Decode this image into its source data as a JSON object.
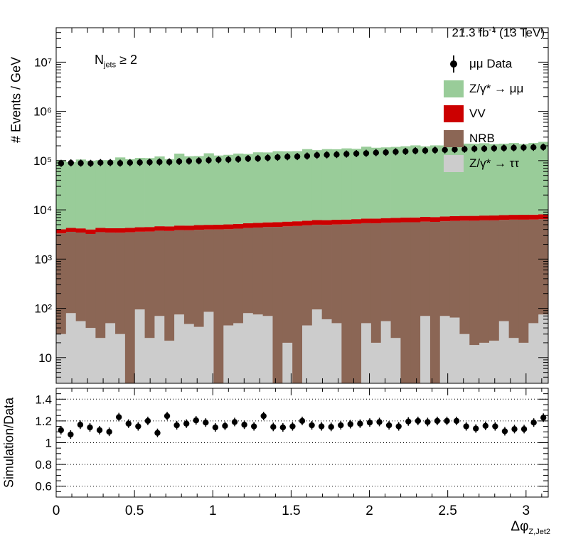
{
  "header": {
    "lumi": "21.3 fb",
    "lumi_sup": "-1",
    "lumi_tail": " (13 TeV)",
    "selection_main": "N",
    "selection_sub": "jets",
    "selection_tail": " ≥ 2"
  },
  "axes": {
    "top_ylabel": "# Events / GeV",
    "bottom_ylabel": "Simulation/Data",
    "xlabel_main": "Δφ",
    "xlabel_sub": "Z,Jet2"
  },
  "legend": [
    {
      "label": "μμ Data",
      "kind": "marker",
      "color": "#000000"
    },
    {
      "label": "Z/γ* → μμ",
      "kind": "fill",
      "color": "#99cc99"
    },
    {
      "label": "VV",
      "kind": "fill",
      "color": "#cc0000"
    },
    {
      "label": "NRB",
      "kind": "fill",
      "color": "#8b6655"
    },
    {
      "label": "Z/γ* → ττ",
      "kind": "fill",
      "color": "#cccccc"
    }
  ],
  "chart_data": {
    "type": "bar",
    "stacked": true,
    "xlim": [
      0,
      3.1416
    ],
    "ylim_top": [
      3,
      50000000
    ],
    "yscale_top": "log",
    "ylim_bottom": [
      0.5,
      1.5
    ],
    "xticks": [
      0,
      0.5,
      1,
      1.5,
      2,
      2.5,
      3
    ],
    "xtick_labels": [
      "0",
      "0.5",
      "1",
      "1.5",
      "2",
      "2.5",
      "3"
    ],
    "yticks_top": [
      10,
      100,
      1000,
      10000,
      100000,
      1000000,
      10000000
    ],
    "ytick_labels_top": [
      "10",
      "10²",
      "10³",
      "10⁴",
      "10⁵",
      "10⁶",
      "10⁷"
    ],
    "yticks_bottom": [
      0.6,
      0.8,
      1,
      1.2,
      1.4
    ],
    "ytick_labels_bottom": [
      "0.6",
      "0.8",
      "1",
      "1.2",
      "1.4"
    ],
    "n_bins": 50,
    "colors": {
      "zmm": "#99cc99",
      "vv": "#cc0000",
      "nrb": "#8b6655",
      "ztt": "#cccccc",
      "data": "#000000"
    },
    "series": [
      {
        "name": "Z/γ* → ττ",
        "key": "ztt",
        "values": [
          30,
          80,
          55,
          40,
          25,
          50,
          30,
          0,
          95,
          25,
          70,
          22,
          75,
          48,
          42,
          85,
          0,
          45,
          50,
          80,
          75,
          70,
          0,
          20,
          0,
          45,
          95,
          60,
          50,
          0,
          0,
          50,
          20,
          55,
          25,
          0,
          0,
          70,
          0,
          70,
          65,
          30,
          18,
          20,
          22,
          55,
          25,
          20,
          50,
          75
        ]
      },
      {
        "name": "NRB",
        "key": "nrb",
        "values": [
          3300,
          3500,
          3400,
          3200,
          3500,
          3400,
          3400,
          3500,
          3500,
          3600,
          3700,
          3700,
          3800,
          3800,
          3900,
          3900,
          4000,
          4000,
          4100,
          4200,
          4300,
          4400,
          4500,
          4600,
          4700,
          4800,
          4900,
          4900,
          5000,
          5100,
          5200,
          5300,
          5300,
          5400,
          5500,
          5600,
          5600,
          5700,
          5700,
          5800,
          5900,
          6000,
          6000,
          6100,
          6100,
          6200,
          6300,
          6300,
          6300,
          6400
        ]
      },
      {
        "name": "VV",
        "key": "vv",
        "values": [
          700,
          720,
          750,
          760,
          780,
          790,
          800,
          820,
          840,
          860,
          880,
          900,
          920,
          940,
          960,
          980,
          1000,
          1020,
          1040,
          1060,
          1080,
          1100,
          1120,
          1140,
          1160,
          1180,
          1200,
          1220,
          1240,
          1260,
          1280,
          1300,
          1320,
          1340,
          1360,
          1380,
          1400,
          1420,
          1440,
          1460,
          1480,
          1500,
          1520,
          1540,
          1560,
          1580,
          1600,
          1620,
          1640,
          1660
        ]
      },
      {
        "name": "Z/γ* → μμ",
        "key": "zmm",
        "values": [
          98000,
          89000,
          101000,
          96000,
          98000,
          98000,
          112000,
          102000,
          109000,
          108000,
          117000,
          103000,
          134000,
          118000,
          119000,
          136000,
          122000,
          126000,
          134000,
          131000,
          142000,
          141000,
          150000,
          149000,
          150000,
          165000,
          157000,
          165000,
          164000,
          171000,
          167000,
          185000,
          176000,
          179000,
          183000,
          189000,
          197000,
          188000,
          197000,
          196000,
          208000,
          214000,
          213000,
          218000,
          209000,
          213000,
          220000,
          209000,
          220000,
          232000
        ]
      }
    ],
    "data_points": {
      "name": "μμ Data",
      "values": [
        88000,
        90000,
        89000,
        88000,
        91000,
        91000,
        89000,
        91000,
        92000,
        93000,
        94000,
        94000,
        96000,
        98000,
        99000,
        102000,
        104000,
        105000,
        107000,
        110000,
        111000,
        114000,
        117000,
        120000,
        121000,
        124000,
        129000,
        131000,
        133000,
        136000,
        139000,
        141000,
        145000,
        147000,
        151000,
        154000,
        158000,
        160000,
        163000,
        165000,
        168000,
        171000,
        174000,
        175000,
        178000,
        180000,
        182000,
        184000,
        186000,
        188000
      ]
    },
    "ratio": {
      "values": [
        1.115,
        1.075,
        1.165,
        1.14,
        1.115,
        1.1,
        1.235,
        1.175,
        1.15,
        1.2,
        1.09,
        1.245,
        1.16,
        1.175,
        1.205,
        1.185,
        1.14,
        1.155,
        1.19,
        1.165,
        1.15,
        1.245,
        1.145,
        1.14,
        1.15,
        1.2,
        1.16,
        1.15,
        1.145,
        1.16,
        1.17,
        1.175,
        1.185,
        1.19,
        1.16,
        1.15,
        1.195,
        1.2,
        1.19,
        1.2,
        1.2,
        1.2,
        1.15,
        1.13,
        1.155,
        1.15,
        1.105,
        1.125,
        1.125,
        1.185
      ],
      "extra_last": 1.23,
      "reference_lines": [
        0.6,
        0.8,
        1,
        1.2,
        1.4
      ]
    }
  }
}
